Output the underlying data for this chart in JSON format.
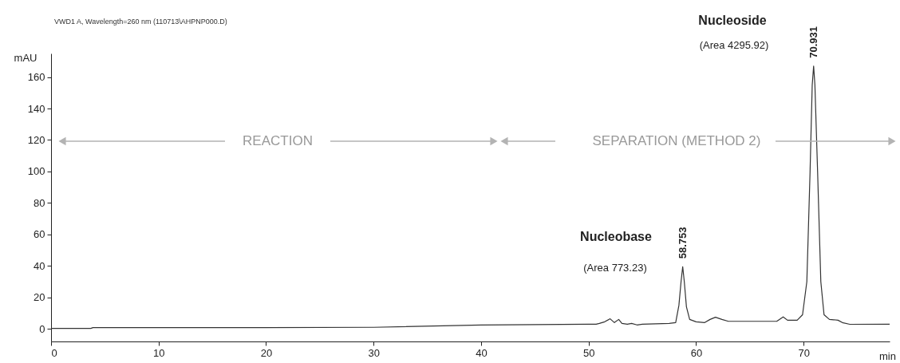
{
  "chart_data": {
    "type": "line",
    "title": "VWD1 A, Wavelength=260 nm (110713\\AHPNP000.D)",
    "xlabel": "min",
    "ylabel": "mAU",
    "x": [
      0,
      3.7,
      3.9,
      20,
      30,
      40,
      50,
      50.7,
      51,
      51.5,
      52,
      52.4,
      52.8,
      53.1,
      53.6,
      54,
      54.5,
      55,
      57.5,
      58.1,
      58.4,
      58.6,
      58.753,
      58.9,
      59.1,
      59.4,
      60,
      60.8,
      61.3,
      61.8,
      62.4,
      63,
      67.5,
      68.1,
      68.5,
      69.4,
      69.9,
      70.3,
      70.6,
      70.8,
      70.931,
      71.05,
      71.3,
      71.6,
      71.9,
      72.4,
      72.8,
      73.2,
      73.6,
      74.3,
      78
    ],
    "series": [
      {
        "color": "#333333",
        "values": [
          0.3,
          0.3,
          0.8,
          0.8,
          1,
          2.5,
          3,
          3,
          3.5,
          4.5,
          6.4,
          4,
          6,
          3.5,
          3,
          3.5,
          2.5,
          3,
          3.5,
          4,
          15,
          30,
          39.5,
          30,
          14,
          6,
          4.5,
          4,
          6,
          7.4,
          6,
          4.8,
          4.8,
          7.6,
          5.5,
          5.5,
          9,
          30,
          100,
          155,
          167,
          155,
          100,
          30,
          9,
          6,
          5.8,
          5.5,
          4,
          2.9,
          3
        ]
      }
    ],
    "xlim": [
      0,
      78
    ],
    "xticks": [
      0,
      10,
      20,
      30,
      40,
      50,
      60,
      70
    ],
    "ylim": [
      -8,
      175
    ],
    "yticks": [
      0,
      20,
      40,
      60,
      80,
      100,
      120,
      140,
      160
    ],
    "grid": false,
    "annotations": [
      "REACTION",
      "SEPARATION (METHOD 2)",
      "Nucleobase",
      "(Area 773.23)",
      {
        "text": "58.753",
        "x": 58.753,
        "y": 39.5
      },
      "Nucleoside",
      "(Area 4295.92)",
      {
        "text": "70.931",
        "x": 70.931,
        "y": 167
      }
    ]
  }
}
